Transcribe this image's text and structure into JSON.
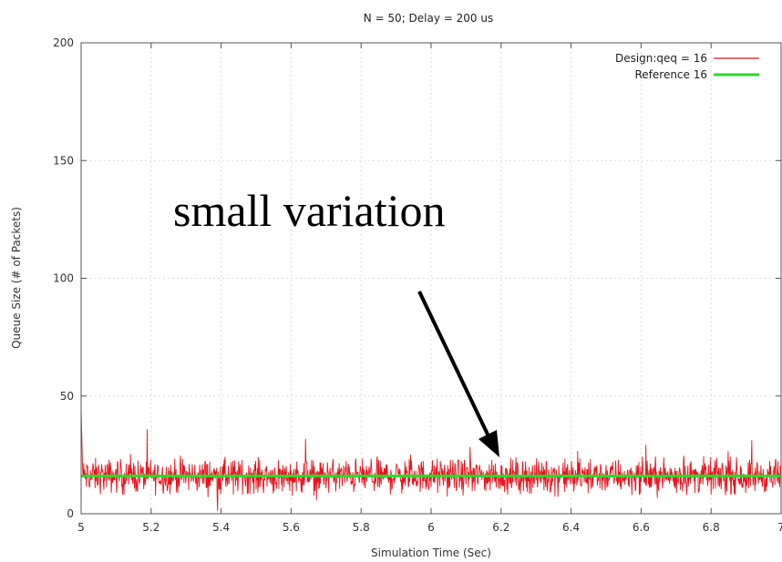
{
  "chart_data": {
    "type": "line",
    "title": "N = 50; Delay = 200 us",
    "xlabel": "Simulation Time (Sec)",
    "ylabel": "Queue Size (# of Packets)",
    "xlim": [
      5,
      7
    ],
    "ylim": [
      0,
      200
    ],
    "x_ticks": [
      "5",
      "5.2",
      "5.4",
      "5.6",
      "5.8",
      "6",
      "6.2",
      "6.4",
      "6.6",
      "6.8",
      "7"
    ],
    "y_ticks": [
      "0",
      "50",
      "100",
      "150",
      "200"
    ],
    "grid": true,
    "legend_position": "top-right",
    "series": [
      {
        "name": "Design:qeq = 16",
        "color": "#e8141c",
        "style": "noisy line",
        "mean": 16,
        "typical_range": [
          8,
          24
        ],
        "initial_spike": 45
      },
      {
        "name": "Reference 16",
        "color": "#2fd62f",
        "style": "flat line",
        "value": 16
      }
    ],
    "annotations": [
      {
        "text": "small variation",
        "arrow_to": [
          6.2,
          24
        ]
      }
    ]
  }
}
